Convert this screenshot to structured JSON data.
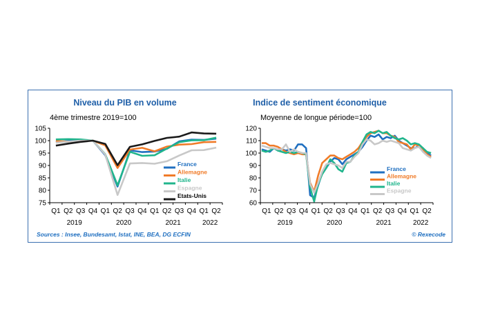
{
  "footer": {
    "sources": "Sources : Insee, Bundesamt, Istat, INE, BEA, DG ECFIN",
    "credit": "© Rexecode"
  },
  "chart_data": [
    {
      "type": "line",
      "title": "Niveau du PIB en volume",
      "subtitle": "4ème trimestre 2019=100",
      "xlabel": "",
      "ylabel": "",
      "ylim": [
        75,
        105
      ],
      "yticks": [
        "75",
        "80",
        "85",
        "90",
        "95",
        "100",
        "105"
      ],
      "quarters": [
        "Q1",
        "Q2",
        "Q3",
        "Q4",
        "Q1",
        "Q2",
        "Q3",
        "Q4",
        "Q1",
        "Q2",
        "Q3",
        "Q4",
        "Q1",
        "Q2"
      ],
      "years": [
        {
          "label": "2019",
          "center": 1.5
        },
        {
          "label": "2020",
          "center": 5.5
        },
        {
          "label": "2021",
          "center": 9.5
        },
        {
          "label": "2022",
          "center": 12.5
        }
      ],
      "grid": false,
      "legend_position": "bottom-right",
      "series": [
        {
          "name": "France",
          "color": "#1f6fc0",
          "values": [
            99.4,
            99.9,
            100.1,
            100,
            94.1,
            81.5,
            96.1,
            95.4,
            95.6,
            96.7,
            99.7,
            100.4,
            100.3,
            100.8
          ]
        },
        {
          "name": "Allemagne",
          "color": "#f07b28",
          "values": [
            99.8,
            99.6,
            99.8,
            100,
            98.1,
            89.0,
            96.4,
            97.1,
            95.7,
            97.6,
            98.4,
            98.6,
            99.4,
            99.5
          ]
        },
        {
          "name": "Italie",
          "color": "#20b58c",
          "values": [
            100.5,
            100.6,
            100.5,
            100,
            94.5,
            82.0,
            95.5,
            93.9,
            94.1,
            96.8,
            99.4,
            100.1,
            100.2,
            101.2
          ]
        },
        {
          "name": "Espagne",
          "color": "#c8c8c8",
          "values": [
            99.2,
            99.6,
            100,
            100,
            94.4,
            78.1,
            90.8,
            91.0,
            90.7,
            91.7,
            94.0,
            96.1,
            96.2,
            97.2
          ]
        },
        {
          "name": "Etats-Unis",
          "color": "#1a1a1a",
          "values": [
            98.0,
            98.8,
            99.5,
            100,
            98.7,
            90.1,
            97.5,
            98.5,
            99.9,
            101.1,
            101.6,
            103.3,
            102.9,
            102.8
          ]
        }
      ]
    },
    {
      "type": "line",
      "title": "Indice de sentiment économique",
      "subtitle": "Moyenne de longue période=100",
      "xlabel": "",
      "ylabel": "",
      "ylim": [
        60,
        120
      ],
      "yticks": [
        "60",
        "70",
        "80",
        "90",
        "100",
        "110",
        "120"
      ],
      "quarters": [
        "Q1",
        "Q2",
        "Q3",
        "Q4",
        "Q1",
        "Q2",
        "Q3",
        "Q4",
        "Q1",
        "Q2",
        "Q3",
        "Q4",
        "Q1",
        "Q2"
      ],
      "years": [
        {
          "label": "2019",
          "center": 1.5
        },
        {
          "label": "2020",
          "center": 5.5
        },
        {
          "label": "2021",
          "center": 9.5
        },
        {
          "label": "2022",
          "center": 12.5
        }
      ],
      "grid": false,
      "legend_position": "bottom-right",
      "series": [
        {
          "name": "France",
          "color": "#1f6fc0",
          "values": [
            103,
            102,
            101,
            104,
            102,
            103,
            102,
            103,
            102,
            107,
            107,
            104,
            66,
            64,
            74,
            84,
            88,
            93,
            96,
            95,
            91,
            95,
            97,
            99,
            101,
            105,
            110,
            114,
            113,
            115,
            111,
            113,
            112,
            114,
            110,
            108,
            106,
            104,
            104,
            106,
            104,
            100,
            98
          ]
        },
        {
          "name": "Allemagne",
          "color": "#f07b28",
          "values": [
            108,
            108,
            106,
            106,
            105,
            103,
            101,
            100,
            99,
            100,
            99,
            99,
            76,
            69,
            82,
            92,
            95,
            98,
            98,
            96,
            95,
            97,
            99,
            101,
            104,
            109,
            113,
            116,
            117,
            118,
            116,
            116,
            114,
            113,
            109,
            108,
            107,
            103,
            107,
            106,
            103,
            99,
            97
          ]
        },
        {
          "name": "Italie",
          "color": "#20b58c",
          "values": [
            102,
            101,
            102,
            104,
            102,
            101,
            100,
            101,
            100,
            101,
            100,
            99,
            72,
            61,
            75,
            83,
            88,
            95,
            92,
            87,
            85,
            92,
            93,
            98,
            101,
            109,
            115,
            117,
            116,
            118,
            116,
            117,
            114,
            112,
            111,
            112,
            110,
            107,
            108,
            107,
            104,
            101,
            100
          ]
        },
        {
          "name": "Espagne",
          "color": "#c8c8c8",
          "values": [
            106,
            105,
            104,
            104,
            103,
            103,
            107,
            101,
            103,
            101,
            100,
            100,
            75,
            68,
            76,
            85,
            91,
            92,
            91,
            90,
            88,
            93,
            93,
            97,
            100,
            107,
            111,
            110,
            107,
            108,
            110,
            109,
            110,
            109,
            108,
            104,
            103,
            102,
            104,
            105,
            101,
            98,
            96
          ]
        }
      ]
    }
  ]
}
